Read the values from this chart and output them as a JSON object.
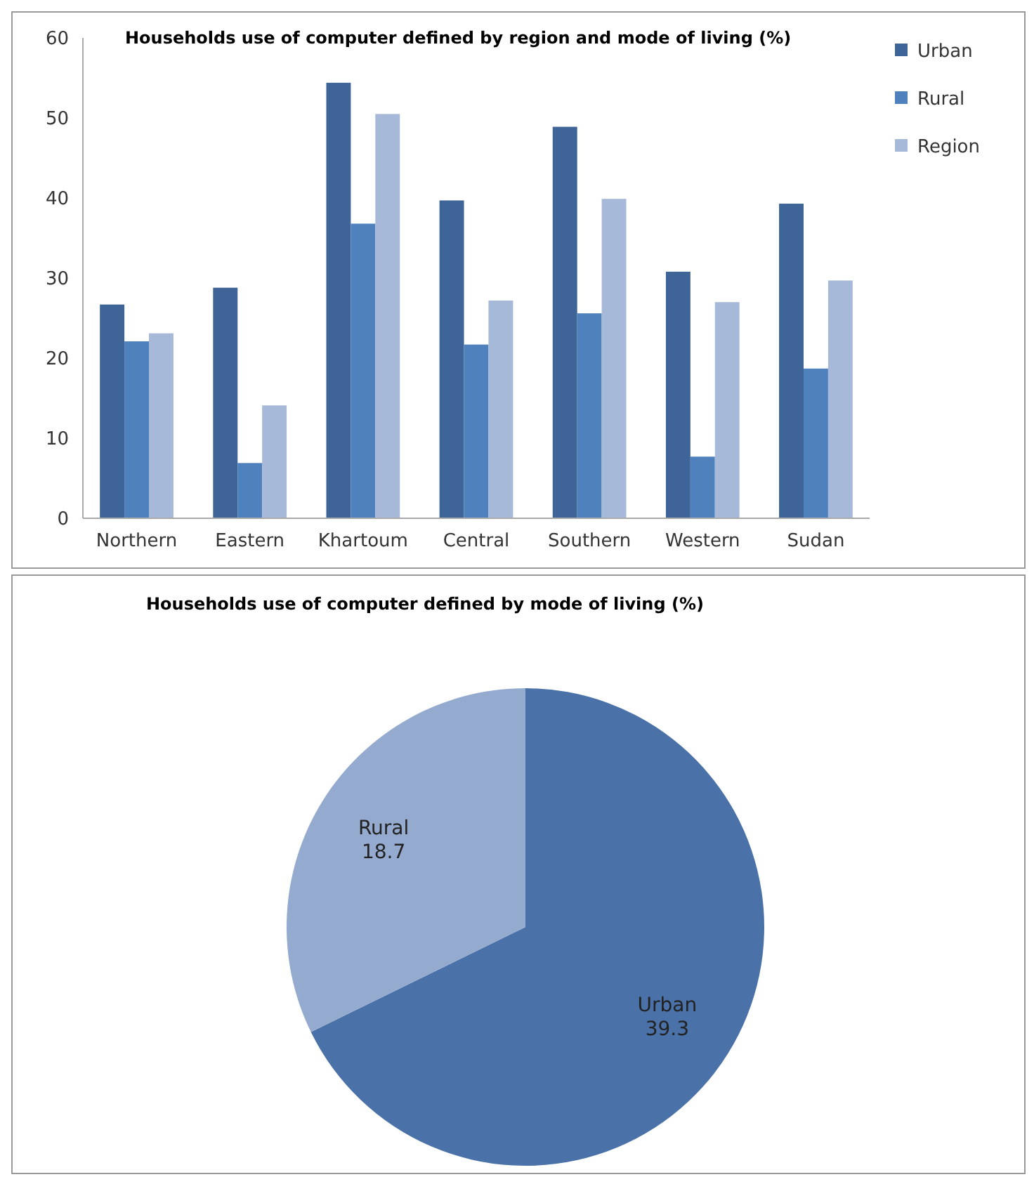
{
  "chart_data": [
    {
      "type": "bar",
      "title": "Households use of computer defined by region and mode of living (%)",
      "categories": [
        "Northern",
        "Eastern",
        "Khartoum",
        "Central",
        "Southern",
        "Western",
        "Sudan"
      ],
      "series": [
        {
          "name": "Urban",
          "color": "#3f6598",
          "values": [
            26.7,
            28.8,
            54.4,
            39.7,
            48.9,
            30.8,
            39.3
          ]
        },
        {
          "name": "Rural",
          "color": "#4f81bd",
          "values": [
            22.1,
            6.9,
            36.8,
            21.7,
            25.6,
            7.7,
            18.7
          ]
        },
        {
          "name": "Region",
          "color": "#a7b9d9",
          "values": [
            23.1,
            14.1,
            50.5,
            27.2,
            39.9,
            27.0,
            29.7
          ]
        }
      ],
      "ylim": [
        0,
        60
      ],
      "yticks": [
        0,
        10,
        20,
        30,
        40,
        50,
        60
      ],
      "grid": false,
      "legend": "top right"
    },
    {
      "type": "pie",
      "title": "Households use of computer defined by mode of living (%)",
      "categories": [
        "Urban",
        "Rural"
      ],
      "values": [
        39.3,
        18.7
      ],
      "colors": [
        "#4a72a8",
        "#95aacf"
      ],
      "data_labels": true
    }
  ]
}
